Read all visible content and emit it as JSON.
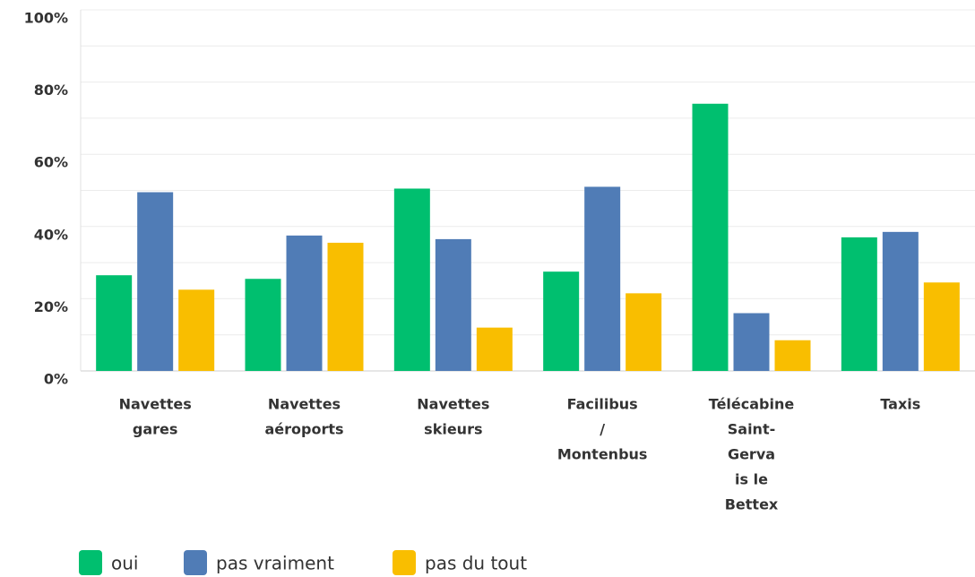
{
  "chart_data": {
    "type": "bar",
    "categories": [
      [
        "Navettes",
        "gares"
      ],
      [
        "Navettes",
        "aéroports"
      ],
      [
        "Navettes",
        "skieurs"
      ],
      [
        "Facilibus",
        "/",
        "Montenbus"
      ],
      [
        "Télécabine",
        "Saint-",
        "Gerva",
        "is le",
        "Bettex"
      ],
      [
        "Taxis"
      ]
    ],
    "series": [
      {
        "name": "oui",
        "color": "#00bf6f",
        "values": [
          26.5,
          25.5,
          50.5,
          27.5,
          74,
          37
        ]
      },
      {
        "name": "pas vraiment",
        "color": "#507cb6",
        "values": [
          49.5,
          37.5,
          36.5,
          51,
          16,
          38.5
        ]
      },
      {
        "name": "pas du tout",
        "color": "#f9be00",
        "values": [
          22.5,
          35.5,
          12,
          21.5,
          8.5,
          24.5
        ]
      }
    ],
    "ylim": [
      0,
      100
    ],
    "yticks": [
      {
        "value": 0,
        "label": "0%"
      },
      {
        "value": 20,
        "label": "20%"
      },
      {
        "value": 40,
        "label": "40%"
      },
      {
        "value": 60,
        "label": "60%"
      },
      {
        "value": 80,
        "label": "80%"
      },
      {
        "value": 100,
        "label": "100%"
      }
    ],
    "yminor": [
      10,
      30,
      50,
      70,
      90
    ],
    "grid": true,
    "legend": "bottom-left"
  }
}
